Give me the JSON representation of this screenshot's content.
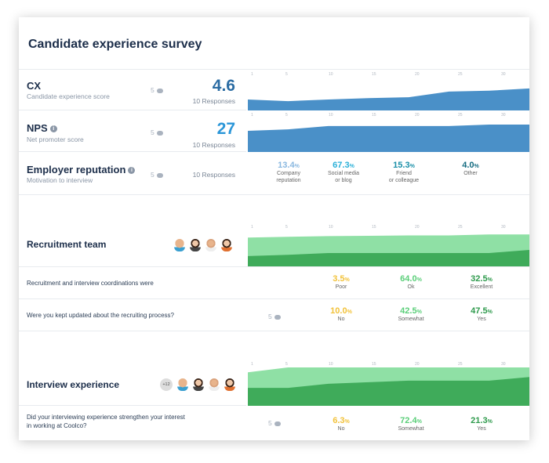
{
  "title": "Candidate experience survey",
  "axis_ticks": [
    "1",
    "5",
    "10",
    "15",
    "20",
    "25",
    "30"
  ],
  "colors": {
    "blue": "#4a90c8",
    "light_green": "#8fe0a5",
    "dark_green": "#3fab5a",
    "score_dark": "#2b6ca3",
    "score_light": "#2b96d8"
  },
  "metrics": [
    {
      "title": "CX",
      "subtitle": "Candidate experience score",
      "comments": "5",
      "score": "4.6",
      "responses": "10 Responses",
      "trend": [
        39,
        33,
        39,
        44,
        47,
        67,
        70,
        78
      ]
    },
    {
      "title": "NPS",
      "subtitle": "Net promoter score",
      "comments": "5",
      "score": "27",
      "responses": "10 Responses",
      "trend": [
        71,
        76,
        87,
        87,
        87,
        87,
        92,
        92
      ],
      "info": "i"
    },
    {
      "title": "Employer reputation",
      "subtitle": "Motivation to interview",
      "comments": "5",
      "responses": "10 Responses",
      "info": "i",
      "stats": [
        {
          "value": "13.4",
          "unit": "%",
          "label1": "Company",
          "label2": "reputation",
          "color": "#8ab8e0"
        },
        {
          "value": "67.3",
          "unit": "%",
          "label1": "Social media",
          "label2": "or blog",
          "color": "#2ab0d8"
        },
        {
          "value": "15.3",
          "unit": "%",
          "label1": "Friend",
          "label2": "or colleague",
          "color": "#1a8fa8"
        },
        {
          "value": "4.0",
          "unit": "%",
          "label1": "Other",
          "label2": "",
          "color": "#146b80"
        }
      ]
    }
  ],
  "sections": [
    {
      "title": "Recruitment team",
      "avatars": [
        "avatar-man",
        "avatar-woman",
        "avatar-woman",
        "avatar-man"
      ],
      "light": [
        86,
        88,
        90,
        91,
        92,
        92,
        95,
        95
      ],
      "dark": [
        32,
        36,
        41,
        41,
        41,
        41,
        41,
        50
      ],
      "questions": [
        {
          "text": "Recruitment and interview coordinations were",
          "comments": "",
          "stats": [
            {
              "value": "3.5",
              "unit": "%",
              "label": "Poor",
              "color": "#f2c23a"
            },
            {
              "value": "64.0",
              "unit": "%",
              "label": "Ok",
              "color": "#5ccf7a"
            },
            {
              "value": "32.5",
              "unit": "%",
              "label": "Excellent",
              "color": "#2e9a4c"
            }
          ]
        },
        {
          "text": "Were you kept updated about the recruiting process?",
          "comments": "5",
          "stats": [
            {
              "value": "10.0",
              "unit": "%",
              "label": "No",
              "color": "#f2c23a"
            },
            {
              "value": "42.5",
              "unit": "%",
              "label": "Somewhat",
              "color": "#5ccf7a"
            },
            {
              "value": "47.5",
              "unit": "%",
              "label": "Yes",
              "color": "#2e9a4c"
            }
          ]
        }
      ]
    },
    {
      "title": "Interview experience",
      "more": "+12",
      "avatars": [
        "avatar-man",
        "avatar-woman",
        "avatar-woman",
        "avatar-man"
      ],
      "light": [
        84,
        96,
        96,
        96,
        96,
        96,
        96,
        96
      ],
      "dark": [
        45,
        45,
        55,
        59,
        63,
        63,
        63,
        72
      ],
      "questions": [
        {
          "text1": "Did your interviewing experience strengthen your interest",
          "text2": "in working at Coolco?",
          "comments": "5",
          "stats": [
            {
              "value": "6.3",
              "unit": "%",
              "label": "No",
              "color": "#f2c23a"
            },
            {
              "value": "72.4",
              "unit": "%",
              "label": "Somewhat",
              "color": "#5ccf7a"
            },
            {
              "value": "21.3",
              "unit": "%",
              "label": "Yes",
              "color": "#2e9a4c"
            }
          ]
        }
      ]
    }
  ]
}
